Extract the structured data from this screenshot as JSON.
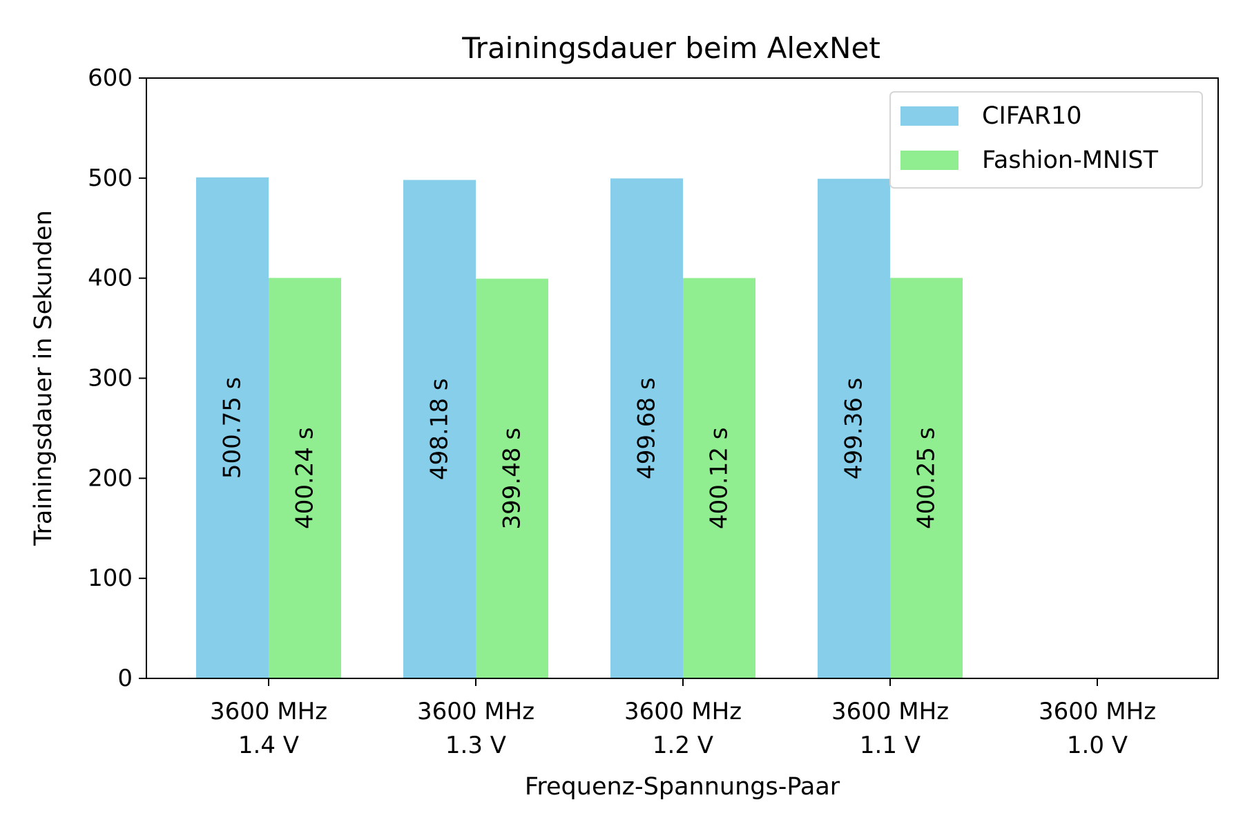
{
  "chart_data": {
    "type": "bar",
    "title": "Trainingsdauer beim AlexNet",
    "xlabel": "Frequenz-Spannungs-Paar",
    "ylabel": "Trainingsdauer in Sekunden",
    "ylim": [
      0,
      600
    ],
    "yticks": [
      0,
      100,
      200,
      300,
      400,
      500,
      600
    ],
    "categories": [
      [
        "3600 MHz",
        "1.4 V"
      ],
      [
        "3600 MHz",
        "1.3 V"
      ],
      [
        "3600 MHz",
        "1.2 V"
      ],
      [
        "3600 MHz",
        "1.1 V"
      ],
      [
        "3600 MHz",
        "1.0 V"
      ]
    ],
    "series": [
      {
        "name": "CIFAR10",
        "color": "#87CEEB",
        "values": [
          500.75,
          498.18,
          499.68,
          499.36,
          null
        ],
        "labels": [
          "500.75 s",
          "498.18 s",
          "499.68 s",
          "499.36 s",
          null
        ]
      },
      {
        "name": "Fashion-MNIST",
        "color": "#90EE90",
        "values": [
          400.24,
          399.48,
          400.12,
          400.25,
          null
        ],
        "labels": [
          "400.24 s",
          "399.48 s",
          "400.12 s",
          "400.25 s",
          null
        ]
      }
    ],
    "grid": false,
    "legend": "top-right"
  }
}
